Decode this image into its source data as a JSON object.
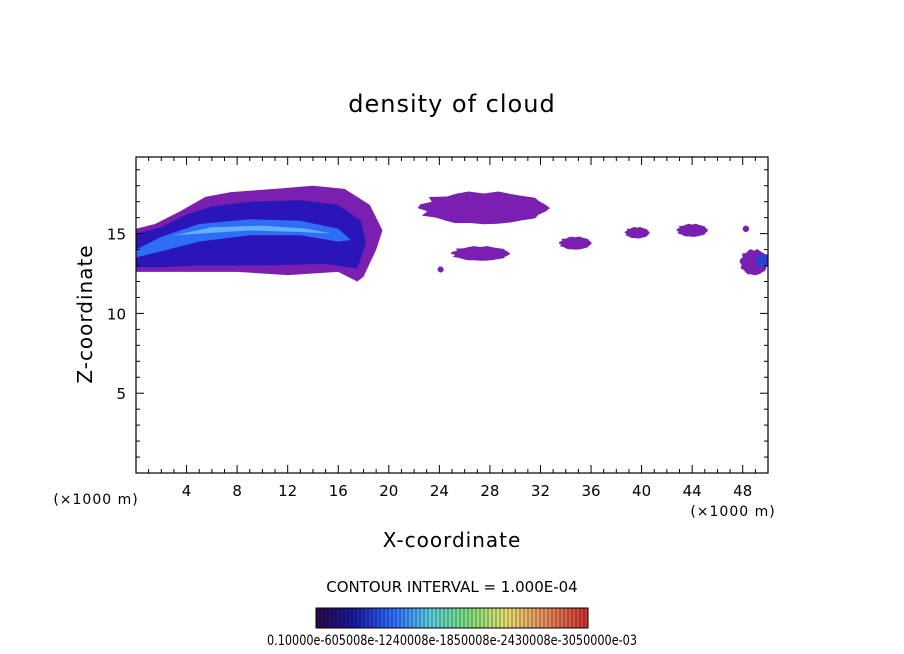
{
  "chart_data": {
    "type": "heatmap",
    "title": "density of cloud",
    "xlabel": "X-coordinate",
    "ylabel": "Z-coordinate",
    "x_unit": "(×1000 m)",
    "z_unit": "(×1000 m)",
    "xlim": [
      0,
      50
    ],
    "ylim": [
      0,
      19.8
    ],
    "x_ticks": [
      4,
      8,
      12,
      16,
      20,
      24,
      28,
      32,
      36,
      40,
      44,
      48
    ],
    "y_ticks": [
      5,
      10,
      15
    ],
    "grid": false,
    "colormap": [
      "#2a0a4a",
      "#1a1aa0",
      "#2f6cff",
      "#5ad0e0",
      "#7fe07f",
      "#e8e070",
      "#e89060",
      "#d03030"
    ],
    "contour_interval_text": "CONTOUR INTERVAL = 1.000E-04",
    "colorbar_labels_text": "0.10000e-605008e-1240008e-1850008e-2430008e-3050000e-03",
    "cloud_regions": [
      {
        "name": "main-cloud",
        "x": [
          0,
          19.5
        ],
        "z": [
          12.2,
          18.0
        ],
        "core_z": 15.2
      },
      {
        "name": "upper-wisp",
        "x": [
          22.5,
          32.5
        ],
        "z": [
          15.6,
          17.6
        ]
      },
      {
        "name": "lower-wisp-left",
        "x": [
          24,
          24.2
        ],
        "z": [
          12.6,
          12.9
        ]
      },
      {
        "name": "mid-wisp",
        "x": [
          25,
          29.5
        ],
        "z": [
          13.3,
          14.2
        ]
      },
      {
        "name": "patch-34",
        "x": [
          33.5,
          36
        ],
        "z": [
          14.0,
          14.8
        ]
      },
      {
        "name": "patch-39",
        "x": [
          38.7,
          40.6
        ],
        "z": [
          14.7,
          15.4
        ]
      },
      {
        "name": "patch-43",
        "x": [
          42.8,
          45.2
        ],
        "z": [
          14.8,
          15.6
        ]
      },
      {
        "name": "patch-48",
        "x": [
          48,
          48.5
        ],
        "z": [
          15.1,
          15.5
        ]
      },
      {
        "name": "edge-cloud",
        "x": [
          47.8,
          50
        ],
        "z": [
          12.4,
          14.0
        ]
      }
    ]
  }
}
